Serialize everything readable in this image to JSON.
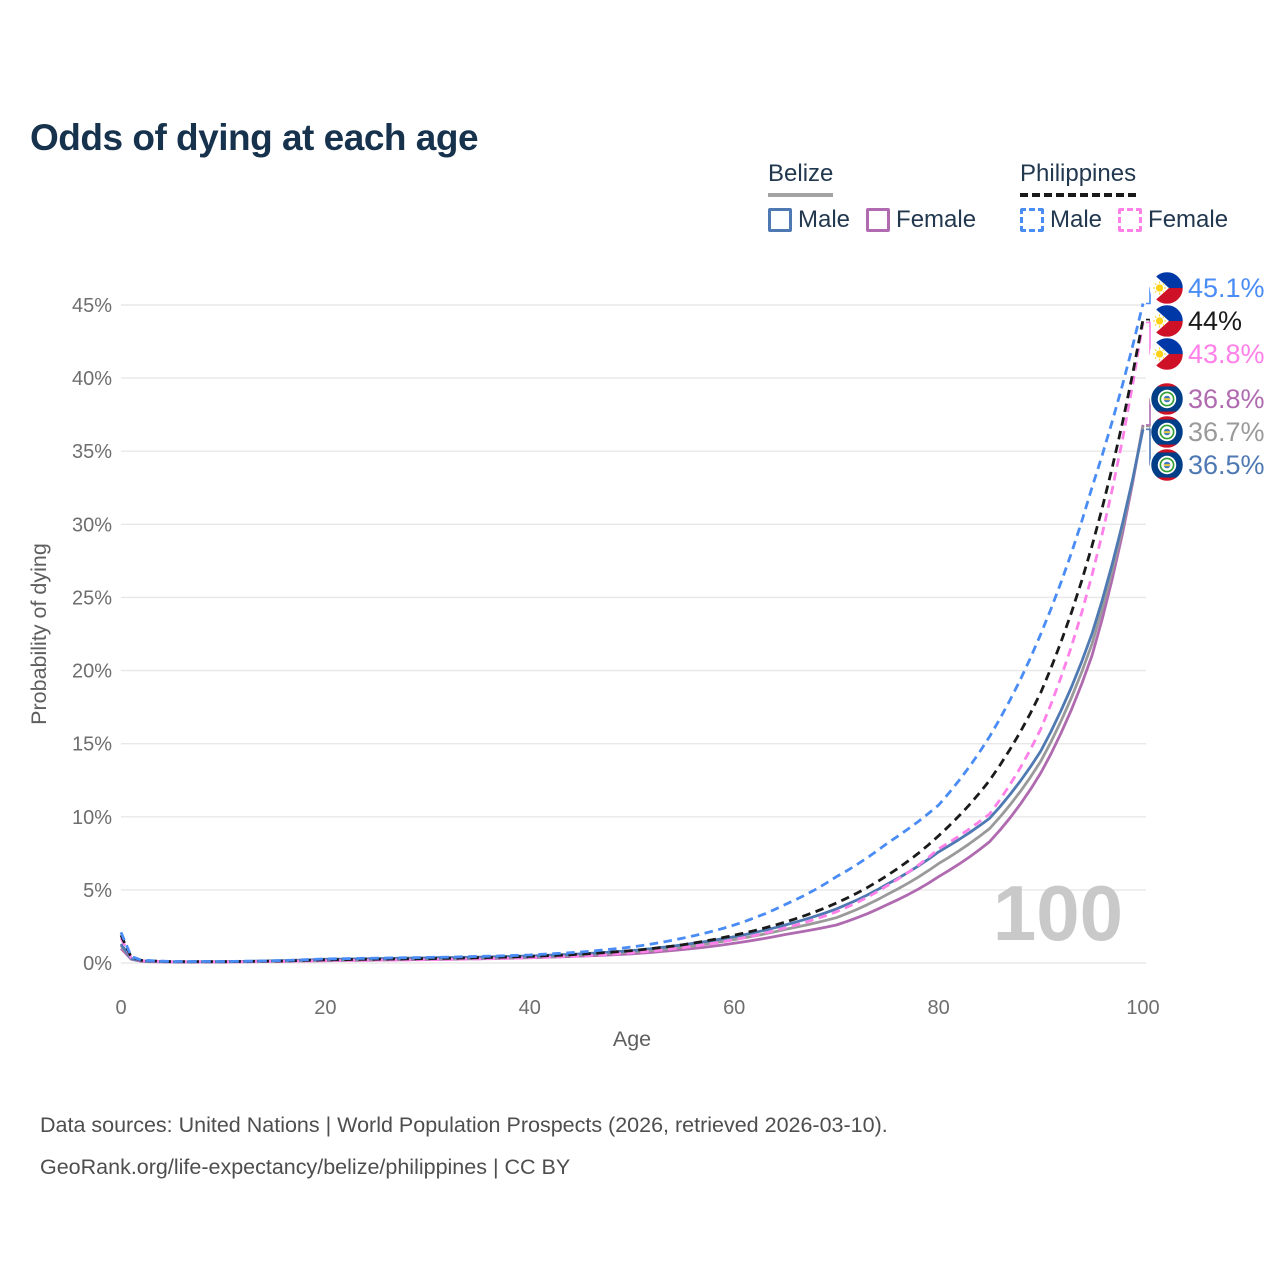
{
  "title": "Odds of dying at each age",
  "legend": {
    "groups": [
      {
        "name": "Belize",
        "line_style": "solid",
        "underline_color": "#a3a3a3",
        "items": [
          {
            "label": "Male",
            "color": "#4e79b2"
          },
          {
            "label": "Female",
            "color": "#b06ab0"
          }
        ]
      },
      {
        "name": "Philippines",
        "line_style": "dashed",
        "underline_color": "#1a1a1a",
        "items": [
          {
            "label": "Male",
            "color": "#4a8cf5"
          },
          {
            "label": "Female",
            "color": "#ff80e8"
          }
        ]
      }
    ]
  },
  "chart_data": {
    "type": "line",
    "title": "Odds of dying at each age",
    "xlabel": "Age",
    "ylabel": "Probability of dying",
    "xlim": [
      0,
      100
    ],
    "ylim_percent": [
      0,
      47
    ],
    "xticks": [
      0,
      20,
      40,
      60,
      80,
      100
    ],
    "yticks_percent": [
      0,
      5,
      10,
      15,
      20,
      25,
      30,
      35,
      40,
      45
    ],
    "grid": true,
    "watermark": "100",
    "ages": [
      0,
      1,
      2,
      5,
      10,
      15,
      20,
      25,
      30,
      35,
      40,
      45,
      50,
      55,
      60,
      65,
      70,
      75,
      80,
      85,
      90,
      95,
      100
    ],
    "series": [
      {
        "name": "Belize Female",
        "country": "Belize",
        "sex": "Female",
        "color": "#b06ab0",
        "dash": "solid",
        "flag": "belize",
        "end_label": "36.8%",
        "end_value_percent": 36.8,
        "values_percent": [
          1.0,
          0.25,
          0.11,
          0.06,
          0.07,
          0.11,
          0.16,
          0.2,
          0.24,
          0.29,
          0.36,
          0.47,
          0.63,
          0.92,
          1.35,
          1.95,
          2.6,
          4.0,
          5.9,
          8.3,
          13.0,
          21.0,
          36.8
        ]
      },
      {
        "name": "Belize Both sexes",
        "country": "Belize",
        "sex": "Both",
        "color": "#9a9a9a",
        "dash": "solid",
        "flag": "belize",
        "end_label": "36.7%",
        "end_value_percent": 36.7,
        "values_percent": [
          1.2,
          0.28,
          0.13,
          0.07,
          0.08,
          0.13,
          0.21,
          0.26,
          0.3,
          0.35,
          0.42,
          0.55,
          0.75,
          1.1,
          1.6,
          2.3,
          3.1,
          4.7,
          6.8,
          9.2,
          13.8,
          21.8,
          36.7
        ]
      },
      {
        "name": "Belize Male",
        "country": "Belize",
        "sex": "Male",
        "color": "#4e79b2",
        "dash": "solid",
        "flag": "belize",
        "end_label": "36.5%",
        "end_value_percent": 36.5,
        "values_percent": [
          1.3,
          0.3,
          0.14,
          0.08,
          0.09,
          0.15,
          0.25,
          0.3,
          0.35,
          0.4,
          0.48,
          0.62,
          0.85,
          1.25,
          1.8,
          2.6,
          3.7,
          5.4,
          7.6,
          9.9,
          14.5,
          22.5,
          36.5
        ]
      },
      {
        "name": "Philippines Female",
        "country": "Philippines",
        "sex": "Female",
        "color": "#ff80e8",
        "dash": "dashed",
        "flag": "philippines",
        "end_label": "43.8%",
        "end_value_percent": 43.8,
        "values_percent": [
          1.7,
          0.35,
          0.15,
          0.08,
          0.08,
          0.11,
          0.16,
          0.19,
          0.23,
          0.28,
          0.36,
          0.48,
          0.7,
          1.05,
          1.6,
          2.4,
          3.5,
          5.3,
          7.8,
          10.2,
          16.0,
          26.5,
          43.8
        ]
      },
      {
        "name": "Philippines Both sexes",
        "country": "Philippines",
        "sex": "Both",
        "color": "#1a1a1a",
        "dash": "dashed",
        "flag": "philippines",
        "end_label": "44%",
        "end_value_percent": 44.0,
        "values_percent": [
          1.9,
          0.4,
          0.18,
          0.09,
          0.09,
          0.13,
          0.22,
          0.26,
          0.3,
          0.36,
          0.45,
          0.6,
          0.85,
          1.25,
          1.9,
          2.8,
          4.1,
          6.0,
          8.7,
          12.5,
          18.5,
          28.5,
          44.0
        ]
      },
      {
        "name": "Philippines Male",
        "country": "Philippines",
        "sex": "Male",
        "color": "#4a8cf5",
        "dash": "dashed",
        "flag": "philippines",
        "end_label": "45.1%",
        "end_value_percent": 45.1,
        "values_percent": [
          2.1,
          0.45,
          0.2,
          0.1,
          0.1,
          0.16,
          0.28,
          0.33,
          0.38,
          0.45,
          0.55,
          0.75,
          1.1,
          1.7,
          2.6,
          4.0,
          5.9,
          8.2,
          10.8,
          15.5,
          22.5,
          32.5,
          45.1
        ]
      }
    ]
  },
  "footer": {
    "line1": "Data sources: United Nations | World Population Prospects (2026, retrieved 2026-03-10).",
    "line2": "GeoRank.org/life-expectancy/belize/philippines | CC BY"
  }
}
